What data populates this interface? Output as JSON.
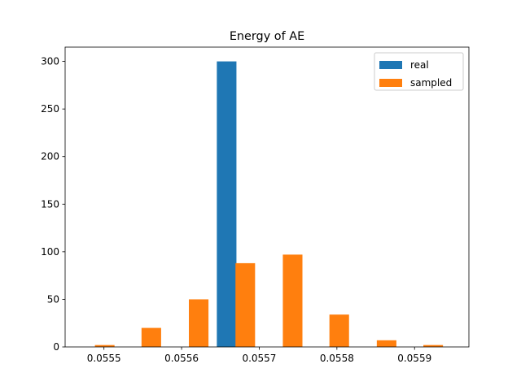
{
  "chart_data": {
    "type": "bar",
    "title": "Energy of AE",
    "xlabel": "",
    "ylabel": "",
    "xlim": [
      0.05545,
      0.05597
    ],
    "ylim": [
      0,
      315
    ],
    "x_ticks": [
      0.0555,
      0.0556,
      0.0557,
      0.0558,
      0.0559
    ],
    "x_tick_labels": [
      "0.0555",
      "0.0556",
      "0.0557",
      "0.0558",
      "0.0559"
    ],
    "y_ticks": [
      0,
      50,
      100,
      150,
      200,
      250,
      300
    ],
    "y_tick_labels": [
      "0",
      "50",
      "100",
      "150",
      "200",
      "250",
      "300"
    ],
    "grid": false,
    "legend_position": "top-right",
    "bin_edges": [
      0.05549,
      0.055591,
      0.055692,
      0.055793,
      0.055894,
      0.055995
    ],
    "series": [
      {
        "name": "real",
        "color": "#1f77b4",
        "bars": [
          {
            "x": 0.055658,
            "value": 300
          }
        ]
      },
      {
        "name": "sampled",
        "color": "#ff7f0e",
        "bars": [
          {
            "x": 0.055501,
            "value": 2
          },
          {
            "x": 0.055561,
            "value": 20
          },
          {
            "x": 0.055622,
            "value": 50
          },
          {
            "x": 0.055682,
            "value": 88
          },
          {
            "x": 0.055743,
            "value": 97
          },
          {
            "x": 0.055803,
            "value": 34
          },
          {
            "x": 0.055864,
            "value": 7
          },
          {
            "x": 0.055924,
            "value": 2
          }
        ]
      }
    ],
    "bar_width_data": 2.525e-05
  }
}
